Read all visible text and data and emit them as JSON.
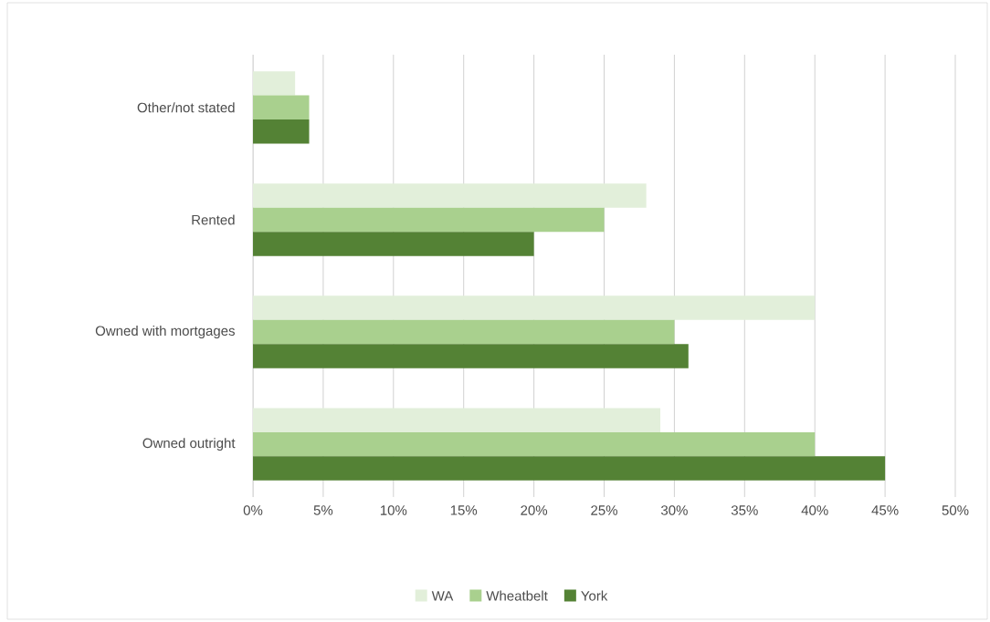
{
  "chart_data": {
    "type": "bar",
    "orientation": "horizontal",
    "categories": [
      "Other/not stated",
      "Rented",
      "Owned with mortgages",
      "Owned outright"
    ],
    "series": [
      {
        "name": "WA",
        "color": "#e2efda",
        "values": [
          3,
          28,
          40,
          29
        ]
      },
      {
        "name": "Wheatbelt",
        "color": "#a9d08e",
        "values": [
          4,
          25,
          30,
          40
        ]
      },
      {
        "name": "York",
        "color": "#548235",
        "values": [
          4,
          20,
          31,
          45
        ]
      }
    ],
    "xlim": [
      0,
      50
    ],
    "xticks": [
      {
        "value": 0,
        "label": "0%"
      },
      {
        "value": 5,
        "label": "5%"
      },
      {
        "value": 10,
        "label": "10%"
      },
      {
        "value": 15,
        "label": "15%"
      },
      {
        "value": 20,
        "label": "20%"
      },
      {
        "value": 25,
        "label": "25%"
      },
      {
        "value": 30,
        "label": "30%"
      },
      {
        "value": 35,
        "label": "35%"
      },
      {
        "value": 40,
        "label": "40%"
      },
      {
        "value": 45,
        "label": "45%"
      },
      {
        "value": 50,
        "label": "50%"
      }
    ],
    "grid": "x",
    "legend": "bottom"
  }
}
